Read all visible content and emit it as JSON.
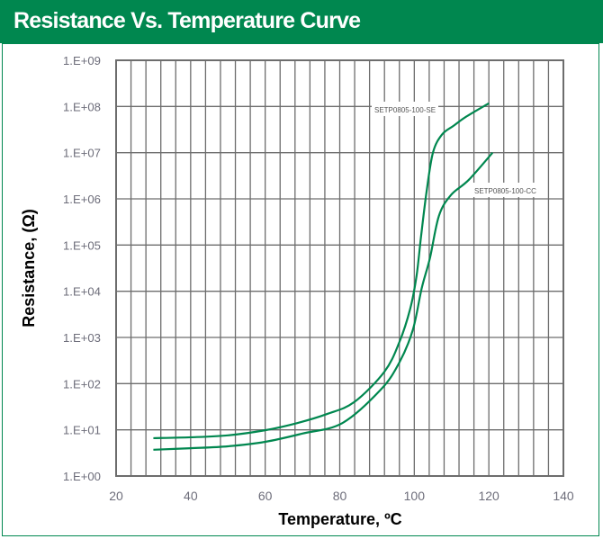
{
  "chart_data": {
    "type": "line",
    "title": "Resistance Vs. Temperature Curve",
    "xlabel": "Temperature, ºC",
    "ylabel": "Resistance, (Ω)",
    "xlim": [
      20,
      140
    ],
    "ylim": [
      1,
      1000000000
    ],
    "yscale": "log",
    "grid": true,
    "xticks": [
      "20",
      "40",
      "60",
      "80",
      "100",
      "120",
      "140"
    ],
    "yticks": [
      "1.E+00",
      "1.E+01",
      "1.E+02",
      "1.E+03",
      "1.E+04",
      "1.E+05",
      "1.E+06",
      "1.E+07",
      "1.E+08",
      "1.E+09"
    ],
    "line_color": "#00874f",
    "series": [
      {
        "name": "SETP0805-100-SE",
        "x": [
          30,
          40,
          50,
          60,
          68.6,
          76.6,
          83.9,
          92,
          96,
          98.9,
          100.6,
          101.8,
          103.3,
          105,
          107.4,
          110.5,
          113.9,
          120
        ],
        "y": [
          6.6,
          6.9,
          7.6,
          9.8,
          14,
          22,
          40,
          182,
          794,
          4170,
          21400,
          151000,
          1450000,
          10000000,
          24500000,
          38000000,
          60000000,
          117000000
        ]
      },
      {
        "name": "SETP0805-100-CC",
        "x": [
          30,
          40,
          50,
          60,
          70,
          80.7,
          91,
          96,
          99.6,
          102,
          104.2,
          106.6,
          109.8,
          114.6,
          121
        ],
        "y": [
          3.7,
          4,
          4.4,
          5.5,
          8.3,
          14,
          74,
          288,
          1450,
          11700,
          52500,
          427000,
          1200000,
          2570000,
          10000000
        ]
      }
    ]
  }
}
